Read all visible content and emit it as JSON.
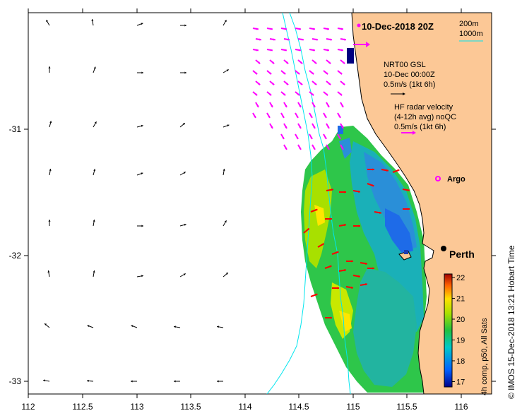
{
  "title": "10-Dec-2018 20Z",
  "x_ticks": [
    "112",
    "112.5",
    "113",
    "113.5",
    "114",
    "114.5",
    "115",
    "115.5",
    "116"
  ],
  "y_ticks": [
    "-31",
    "-32",
    "-33"
  ],
  "legend": {
    "gsl_line1": "NRT00 GSL",
    "gsl_line2": "10-Dec 00:00Z",
    "gsl_line3": "0.5m/s (1kt 6h)",
    "hf_line1": "HF radar velocity",
    "hf_line2": "(4-12h avg) noQC",
    "hf_line3": "0.5m/s (1kt 6h)",
    "depth1": "200m",
    "depth2": "1000m"
  },
  "argo_label": "Argo",
  "city_label": "Perth",
  "colorbar": {
    "ticks": [
      "22",
      "21",
      "20",
      "19",
      "18",
      "17"
    ],
    "caption": "4h comp, p50, All Sats"
  },
  "credit": "© IMOS 15-Dec-2018 13:21 Hobart Time",
  "colors": {
    "land": "#fcc896",
    "gsl_arrow": "#000000",
    "hf_arrow": "#ff00ff",
    "obs_arrow": "#ff0000",
    "isobath": "#00e5ee"
  }
}
